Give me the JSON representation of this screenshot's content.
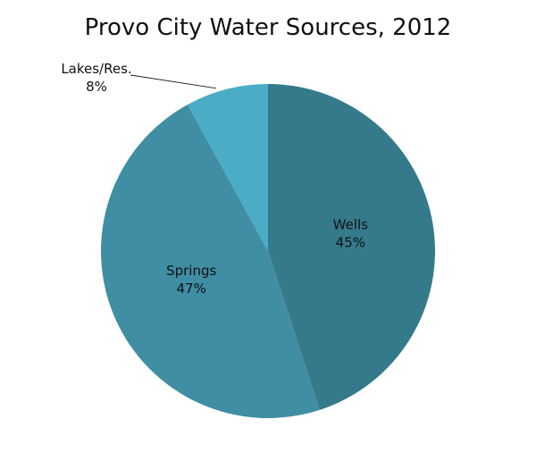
{
  "chart_data": {
    "type": "pie",
    "title": "Provo City Water Sources, 2012",
    "slices": [
      {
        "name": "Wells",
        "value": 45,
        "label": "45%",
        "color": "#347a8a"
      },
      {
        "name": "Springs",
        "value": 47,
        "label": "47%",
        "color": "#3f8ea3"
      },
      {
        "name": "Lakes/Res.",
        "value": 8,
        "label": "8%",
        "color": "#4bacc6"
      }
    ],
    "start": "12 o'clock",
    "direction": "clockwise",
    "legend": "none"
  }
}
